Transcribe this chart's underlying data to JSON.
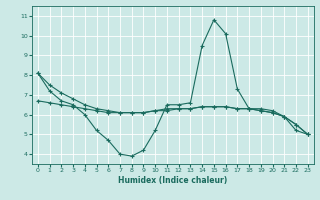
{
  "xlabel": "Humidex (Indice chaleur)",
  "xlim": [
    -0.5,
    23.5
  ],
  "ylim": [
    3.5,
    11.5
  ],
  "yticks": [
    4,
    5,
    6,
    7,
    8,
    9,
    10,
    11
  ],
  "xticks": [
    0,
    1,
    2,
    3,
    4,
    5,
    6,
    7,
    8,
    9,
    10,
    11,
    12,
    13,
    14,
    15,
    16,
    17,
    18,
    19,
    20,
    21,
    22,
    23
  ],
  "bg_color": "#cce9e6",
  "line_color": "#1a6b5e",
  "grid_color": "#ffffff",
  "line1_x": [
    0,
    1,
    2,
    3,
    4,
    5,
    6,
    7,
    8,
    9,
    10,
    11,
    12,
    13,
    14,
    15,
    16,
    17,
    18,
    19,
    20,
    21,
    22,
    23
  ],
  "line1_y": [
    8.1,
    7.2,
    6.7,
    6.5,
    6.0,
    5.2,
    4.7,
    4.0,
    3.9,
    4.2,
    5.2,
    6.5,
    6.5,
    6.6,
    9.5,
    10.8,
    10.1,
    7.3,
    6.3,
    6.3,
    6.2,
    5.9,
    5.2,
    5.0
  ],
  "line2_x": [
    0,
    1,
    2,
    3,
    4,
    5,
    6,
    7,
    8,
    9,
    10,
    11,
    12,
    13,
    14,
    15,
    16,
    17,
    18,
    19,
    20,
    21,
    22,
    23
  ],
  "line2_y": [
    8.1,
    7.5,
    7.1,
    6.8,
    6.5,
    6.3,
    6.2,
    6.1,
    6.1,
    6.1,
    6.2,
    6.2,
    6.3,
    6.3,
    6.4,
    6.4,
    6.4,
    6.3,
    6.3,
    6.2,
    6.1,
    5.9,
    5.5,
    5.0
  ],
  "line3_x": [
    0,
    1,
    2,
    3,
    4,
    5,
    6,
    7,
    8,
    9,
    10,
    11,
    12,
    13,
    14,
    15,
    16,
    17,
    18,
    19,
    20,
    21,
    22,
    23
  ],
  "line3_y": [
    6.7,
    6.6,
    6.5,
    6.4,
    6.3,
    6.2,
    6.1,
    6.1,
    6.1,
    6.1,
    6.2,
    6.3,
    6.3,
    6.3,
    6.4,
    6.4,
    6.4,
    6.3,
    6.3,
    6.2,
    6.1,
    5.9,
    5.5,
    5.0
  ]
}
